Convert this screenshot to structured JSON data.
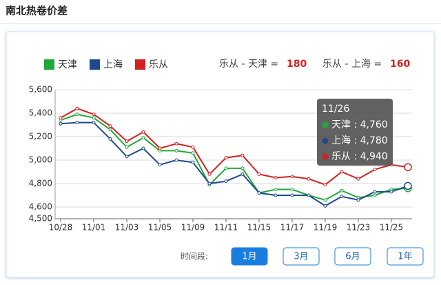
{
  "page": {
    "title": "南北热卷价差"
  },
  "chart_data": {
    "type": "line",
    "categories": [
      "10/28",
      null,
      "11/01",
      null,
      "11/03",
      null,
      "11/05",
      null,
      "11/09",
      null,
      "11/11",
      null,
      "11/15",
      null,
      "11/17",
      null,
      "11/19",
      null,
      "11/23",
      null,
      "11/25",
      null
    ],
    "series": [
      {
        "name": "天津",
        "color": "#22a83a",
        "values": [
          5340,
          5390,
          5360,
          5260,
          5110,
          5190,
          5080,
          5080,
          5060,
          4790,
          4930,
          4930,
          4720,
          4750,
          4750,
          4700,
          4660,
          4740,
          4680,
          4700,
          4750,
          4760
        ]
      },
      {
        "name": "上海",
        "color": "#1d4a8c",
        "values": [
          5310,
          5320,
          5320,
          5180,
          5030,
          5100,
          4960,
          5000,
          4980,
          4800,
          4820,
          4880,
          4720,
          4700,
          4700,
          4700,
          4610,
          4690,
          4660,
          4730,
          4730,
          4780
        ]
      },
      {
        "name": "乐从",
        "color": "#d42020",
        "values": [
          5360,
          5440,
          5390,
          5290,
          5160,
          5240,
          5100,
          5140,
          5110,
          4880,
          5020,
          5040,
          4880,
          4850,
          4860,
          4840,
          4790,
          4900,
          4840,
          4920,
          4960,
          4940
        ]
      }
    ],
    "ylim": [
      4500,
      5600
    ],
    "yticks": [
      {
        "value": 4500,
        "label": "4,500"
      },
      {
        "value": 4600,
        "label": "4,600"
      },
      {
        "value": 4800,
        "label": "4,800"
      },
      {
        "value": 5000,
        "label": "5,000"
      },
      {
        "value": 5200,
        "label": "5,200"
      },
      {
        "value": 5400,
        "label": "5,400"
      },
      {
        "value": 5600,
        "label": "5,600"
      }
    ],
    "grid": true,
    "spreads": [
      {
        "label": "乐从 - 天津 =",
        "value": 180
      },
      {
        "label": "乐从 - 上海 =",
        "value": 160
      }
    ],
    "tooltip": {
      "title": "11/26",
      "rows": [
        "天津 : 4,760",
        "上海 : 4,780",
        "乐从 : 4,940"
      ]
    }
  },
  "controls": {
    "label": "时间段:",
    "buttons": [
      "1月",
      "3月",
      "6月",
      "1年"
    ]
  }
}
